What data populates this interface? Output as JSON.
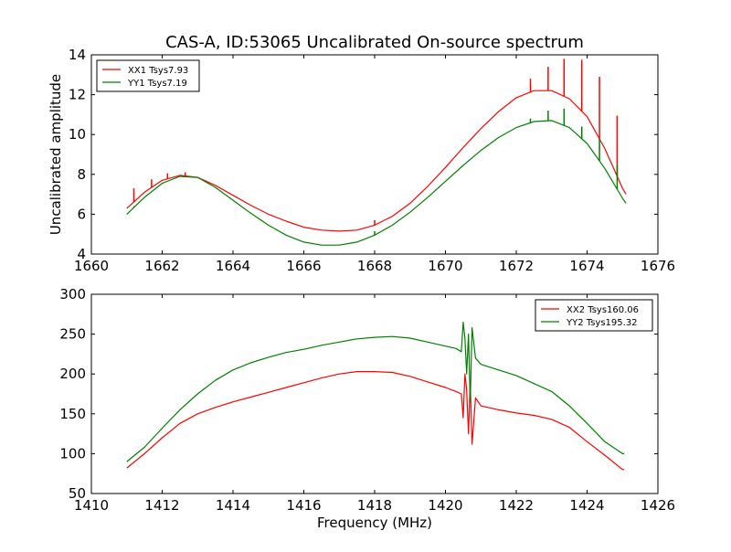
{
  "chart_data": [
    {
      "type": "line",
      "title": "CAS-A, ID:53065 Uncalibrated On-source spectrum",
      "xlabel": "",
      "ylabel": "Uncalibrated amplitude",
      "xlim": [
        1660,
        1676
      ],
      "ylim": [
        4,
        14
      ],
      "xticks": [
        1660,
        1662,
        1664,
        1666,
        1668,
        1670,
        1672,
        1674,
        1676
      ],
      "yticks": [
        4,
        6,
        8,
        10,
        12,
        14
      ],
      "grid": false,
      "legend_position": "upper-left",
      "series": [
        {
          "name": "XX1 Tsys7.93",
          "color": "#ff0000",
          "x": [
            1661.0,
            1661.5,
            1662.0,
            1662.5,
            1663.0,
            1663.5,
            1664.0,
            1664.5,
            1665.0,
            1665.5,
            1666.0,
            1666.5,
            1667.0,
            1667.5,
            1668.0,
            1668.5,
            1669.0,
            1669.5,
            1670.0,
            1670.5,
            1671.0,
            1671.5,
            1672.0,
            1672.5,
            1673.0,
            1673.5,
            1674.0,
            1674.5,
            1675.0,
            1675.1
          ],
          "y": [
            6.3,
            7.1,
            7.7,
            7.95,
            7.85,
            7.45,
            6.95,
            6.45,
            6.0,
            5.65,
            5.35,
            5.2,
            5.15,
            5.2,
            5.45,
            5.9,
            6.55,
            7.4,
            8.35,
            9.35,
            10.3,
            11.15,
            11.85,
            12.2,
            12.2,
            11.8,
            10.9,
            9.3,
            7.3,
            7.0
          ],
          "spikes": [
            {
              "x": 1661.2,
              "y": 7.3
            },
            {
              "x": 1661.7,
              "y": 7.75
            },
            {
              "x": 1662.15,
              "y": 8.05
            },
            {
              "x": 1662.65,
              "y": 8.1
            },
            {
              "x": 1668.0,
              "y": 5.7
            },
            {
              "x": 1672.4,
              "y": 12.8
            },
            {
              "x": 1672.9,
              "y": 13.4
            },
            {
              "x": 1673.35,
              "y": 13.8
            },
            {
              "x": 1673.85,
              "y": 13.75
            },
            {
              "x": 1674.35,
              "y": 12.9
            },
            {
              "x": 1674.85,
              "y": 10.95
            }
          ]
        },
        {
          "name": "YY1 Tsys7.19",
          "color": "#008000",
          "x": [
            1661.0,
            1661.5,
            1662.0,
            1662.5,
            1663.0,
            1663.5,
            1664.0,
            1664.5,
            1665.0,
            1665.5,
            1666.0,
            1666.5,
            1667.0,
            1667.5,
            1668.0,
            1668.5,
            1669.0,
            1669.5,
            1670.0,
            1670.5,
            1671.0,
            1671.5,
            1672.0,
            1672.5,
            1673.0,
            1673.5,
            1674.0,
            1674.5,
            1675.0,
            1675.1
          ],
          "y": [
            6.0,
            6.85,
            7.55,
            7.9,
            7.85,
            7.35,
            6.7,
            6.05,
            5.45,
            4.95,
            4.6,
            4.45,
            4.45,
            4.6,
            4.95,
            5.45,
            6.1,
            6.85,
            7.65,
            8.45,
            9.2,
            9.85,
            10.35,
            10.65,
            10.7,
            10.35,
            9.55,
            8.3,
            6.8,
            6.55
          ],
          "spikes": [
            {
              "x": 1661.2,
              "y": 6.4
            },
            {
              "x": 1668.0,
              "y": 5.15
            },
            {
              "x": 1672.4,
              "y": 10.8
            },
            {
              "x": 1672.9,
              "y": 11.2
            },
            {
              "x": 1673.35,
              "y": 11.3
            },
            {
              "x": 1673.85,
              "y": 10.4
            },
            {
              "x": 1674.35,
              "y": 9.8
            },
            {
              "x": 1674.85,
              "y": 8.5
            }
          ]
        }
      ]
    },
    {
      "type": "line",
      "title": "",
      "xlabel": "Frequency (MHz)",
      "ylabel": "",
      "xlim": [
        1410,
        1426
      ],
      "ylim": [
        50,
        300
      ],
      "xticks": [
        1410,
        1412,
        1414,
        1416,
        1418,
        1420,
        1422,
        1424,
        1426
      ],
      "yticks": [
        50,
        100,
        150,
        200,
        250,
        300
      ],
      "grid": false,
      "legend_position": "upper-right",
      "series": [
        {
          "name": "XX2 Tsys160.06",
          "color": "#ff0000",
          "x": [
            1411.0,
            1411.5,
            1412.0,
            1412.5,
            1413.0,
            1413.5,
            1414.0,
            1414.5,
            1415.0,
            1415.5,
            1416.0,
            1416.5,
            1417.0,
            1417.5,
            1418.0,
            1418.5,
            1419.0,
            1419.5,
            1420.0,
            1420.3,
            1420.45,
            1420.5,
            1420.55,
            1420.6,
            1420.65,
            1420.7,
            1420.75,
            1420.85,
            1421.0,
            1421.5,
            1422.0,
            1422.5,
            1423.0,
            1423.5,
            1424.0,
            1424.5,
            1425.0,
            1425.05
          ],
          "y": [
            82,
            100,
            120,
            138,
            150,
            158,
            165,
            171,
            177,
            183,
            189,
            195,
            200,
            203,
            203,
            202,
            197,
            190,
            183,
            178,
            175,
            145,
            200,
            180,
            125,
            190,
            112,
            170,
            160,
            155,
            151,
            148,
            143,
            133,
            115,
            98,
            80,
            80
          ]
        },
        {
          "name": "YY2 Tsys195.32",
          "color": "#008000",
          "x": [
            1411.0,
            1411.5,
            1412.0,
            1412.5,
            1413.0,
            1413.5,
            1414.0,
            1414.5,
            1415.0,
            1415.5,
            1416.0,
            1416.5,
            1417.0,
            1417.5,
            1418.0,
            1418.5,
            1419.0,
            1419.5,
            1420.0,
            1420.3,
            1420.45,
            1420.5,
            1420.55,
            1420.6,
            1420.65,
            1420.7,
            1420.75,
            1420.85,
            1421.0,
            1421.5,
            1422.0,
            1422.5,
            1423.0,
            1423.5,
            1424.0,
            1424.5,
            1425.0,
            1425.05
          ],
          "y": [
            90,
            108,
            132,
            155,
            175,
            192,
            205,
            214,
            221,
            227,
            231,
            236,
            240,
            244,
            246,
            247,
            245,
            240,
            235,
            232,
            228,
            265,
            245,
            200,
            250,
            165,
            258,
            220,
            212,
            205,
            198,
            188,
            178,
            160,
            138,
            115,
            100,
            100
          ]
        }
      ]
    }
  ]
}
